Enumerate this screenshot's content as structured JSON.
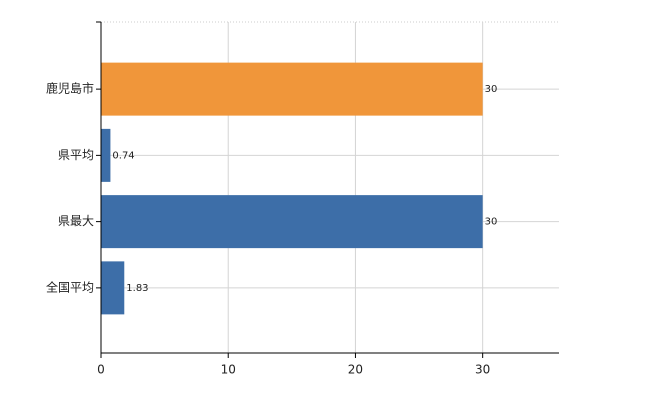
{
  "chart_data": {
    "type": "bar",
    "orientation": "horizontal",
    "categories": [
      "鹿児島市",
      "県平均",
      "県最大",
      "全国平均"
    ],
    "values": [
      30,
      0.74,
      30,
      1.83
    ],
    "colors": [
      "#f0963a",
      "#3d6ea8",
      "#3d6ea8",
      "#3d6ea8"
    ],
    "xlim": [
      0,
      36
    ],
    "xticks": [
      0,
      10,
      20,
      30
    ],
    "grid": true
  }
}
